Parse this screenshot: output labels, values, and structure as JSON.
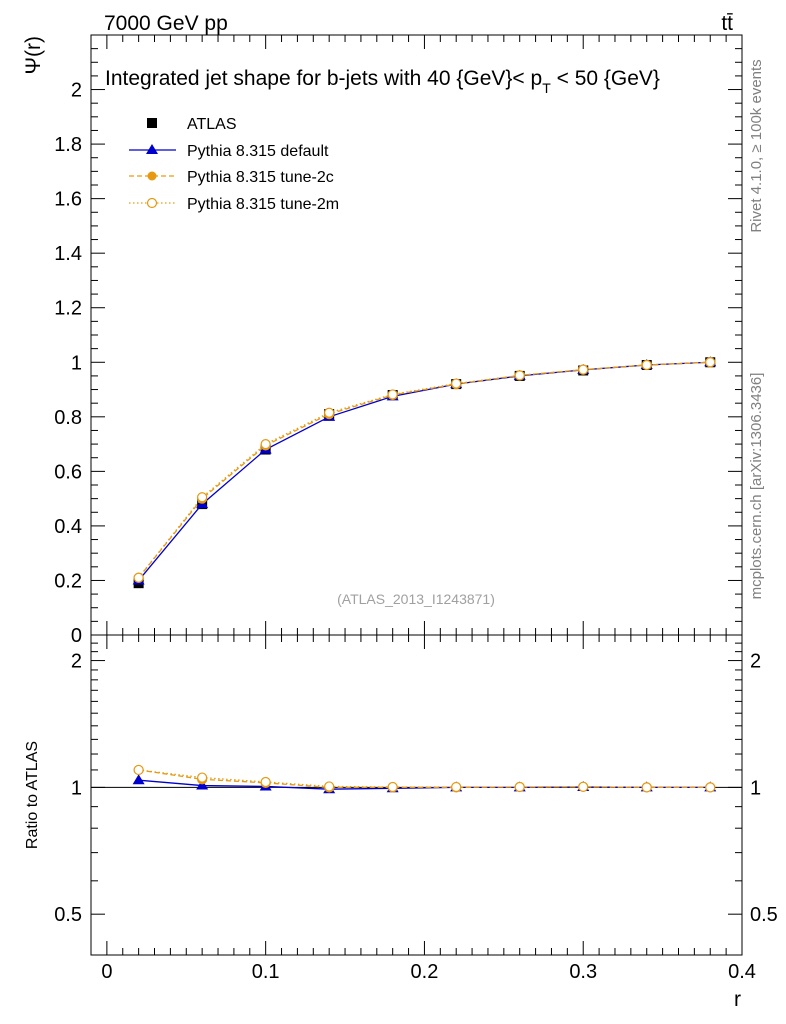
{
  "header": {
    "left": "7000 GeV pp",
    "right": "tt̄"
  },
  "side_labels": {
    "rivet": "Rivet 4.1.0, ≥ 100k events",
    "mcplots": "mcplots.cern.ch [arXiv:1306.3436]"
  },
  "colors": {
    "atlas": "#000000",
    "default": "#0000cc",
    "tune2c": "#e69a12",
    "tune2m": "#e69a12"
  },
  "chart_data": [
    {
      "type": "line",
      "panel": "main",
      "title": "Integrated jet shape for b-jets with 40 {GeV}< p",
      "title_sub": "T",
      "title_tail": " < 50 {GeV}",
      "watermark": "(ATLAS_2013_I1243871)",
      "xlabel": "r",
      "ylabel": "Ψ(r)",
      "xlim": [
        -0.01,
        0.4
      ],
      "ylim": [
        0,
        2.2
      ],
      "yticks": [
        "0",
        "0.2",
        "0.4",
        "0.6",
        "0.8",
        "1",
        "1.2",
        "1.4",
        "1.6",
        "1.8",
        "2"
      ],
      "x": [
        0.02,
        0.06,
        0.1,
        0.14,
        0.18,
        0.22,
        0.26,
        0.3,
        0.34,
        0.38
      ],
      "series": [
        {
          "name": "ATLAS",
          "style": "data",
          "values": [
            0.19,
            0.48,
            0.68,
            0.81,
            0.88,
            0.92,
            0.95,
            0.97,
            0.99,
            1.0
          ]
        },
        {
          "name": "Pythia 8.315 default",
          "style": "solid-triangle",
          "values": [
            0.2,
            0.48,
            0.68,
            0.8,
            0.875,
            0.92,
            0.95,
            0.972,
            0.99,
            1.0
          ]
        },
        {
          "name": "Pythia 8.315 tune-2c",
          "style": "dashed-dot",
          "values": [
            0.21,
            0.5,
            0.695,
            0.81,
            0.88,
            0.92,
            0.952,
            0.973,
            0.99,
            1.0
          ]
        },
        {
          "name": "Pythia 8.315 tune-2m",
          "style": "dotted-circle",
          "values": [
            0.21,
            0.505,
            0.7,
            0.815,
            0.882,
            0.922,
            0.952,
            0.973,
            0.99,
            1.0
          ]
        }
      ]
    },
    {
      "type": "line",
      "panel": "ratio",
      "ylabel": "Ratio to ATLAS",
      "xlabel": "r",
      "xlim": [
        -0.01,
        0.4
      ],
      "ylim": [
        0.4,
        2.3
      ],
      "yscale": "log",
      "yticks": [
        "0.5",
        "1",
        "2"
      ],
      "xticks": [
        "0",
        "0.1",
        "0.2",
        "0.3",
        "0.4"
      ],
      "x": [
        0.02,
        0.06,
        0.1,
        0.14,
        0.18,
        0.22,
        0.26,
        0.3,
        0.34,
        0.38
      ],
      "series": [
        {
          "name": "Pythia 8.315 default",
          "values": [
            1.04,
            1.01,
            1.005,
            0.99,
            0.995,
            1.0,
            1.0,
            1.002,
            1.0,
            1.0
          ]
        },
        {
          "name": "Pythia 8.315 tune-2c",
          "values": [
            1.1,
            1.045,
            1.025,
            1.0,
            1.0,
            1.0,
            1.002,
            1.003,
            1.0,
            1.0
          ]
        },
        {
          "name": "Pythia 8.315 tune-2m",
          "values": [
            1.1,
            1.055,
            1.03,
            1.005,
            1.002,
            1.002,
            1.002,
            1.003,
            1.0,
            1.0
          ]
        }
      ]
    }
  ]
}
